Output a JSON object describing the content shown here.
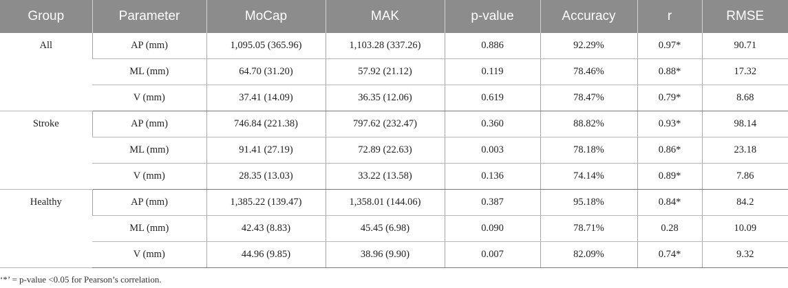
{
  "headers": [
    "Group",
    "Parameter",
    "MoCap",
    "MAK",
    "p-value",
    "Accuracy",
    "r",
    "RMSE"
  ],
  "groups": [
    {
      "name": "All",
      "rows": [
        {
          "parameter": "AP (mm)",
          "mocap": "1,095.05 (365.96)",
          "mak": "1,103.28 (337.26)",
          "p_value": "0.886",
          "accuracy": "92.29%",
          "r": "0.97*",
          "rmse": "90.71"
        },
        {
          "parameter": "ML (mm)",
          "mocap": "64.70 (31.20)",
          "mak": "57.92 (21.12)",
          "p_value": "0.119",
          "accuracy": "78.46%",
          "r": "0.88*",
          "rmse": "17.32"
        },
        {
          "parameter": "V (mm)",
          "mocap": "37.41 (14.09)",
          "mak": "36.35 (12.06)",
          "p_value": "0.619",
          "accuracy": "78.47%",
          "r": "0.79*",
          "rmse": "8.68"
        }
      ]
    },
    {
      "name": "Stroke",
      "rows": [
        {
          "parameter": "AP (mm)",
          "mocap": "746.84 (221.38)",
          "mak": "797.62 (232.47)",
          "p_value": "0.360",
          "accuracy": "88.82%",
          "r": "0.93*",
          "rmse": "98.14"
        },
        {
          "parameter": "ML (mm)",
          "mocap": "91.41 (27.19)",
          "mak": "72.89 (22.63)",
          "p_value": "0.003",
          "accuracy": "78.18%",
          "r": "0.86*",
          "rmse": "23.18"
        },
        {
          "parameter": "V (mm)",
          "mocap": "28.35 (13.03)",
          "mak": "33.22 (13.58)",
          "p_value": "0.136",
          "accuracy": "74.14%",
          "r": "0.89*",
          "rmse": "7.86"
        }
      ]
    },
    {
      "name": "Healthy",
      "rows": [
        {
          "parameter": "AP (mm)",
          "mocap": "1,385.22 (139.47)",
          "mak": "1,358.01 (144.06)",
          "p_value": "0.387",
          "accuracy": "95.18%",
          "r": "0.84*",
          "rmse": "84.2"
        },
        {
          "parameter": "ML (mm)",
          "mocap": "42.43 (8.83)",
          "mak": "45.45 (6.98)",
          "p_value": "0.090",
          "accuracy": "78.71%",
          "r": "0.28",
          "rmse": "10.09"
        },
        {
          "parameter": "V (mm)",
          "mocap": "44.96 (9.85)",
          "mak": "38.96 (9.90)",
          "p_value": "0.007",
          "accuracy": "82.09%",
          "r": "0.74*",
          "rmse": "9.32"
        }
      ]
    }
  ],
  "footnote": "‘*’ = p-value <0.05 for Pearson’s correlation."
}
